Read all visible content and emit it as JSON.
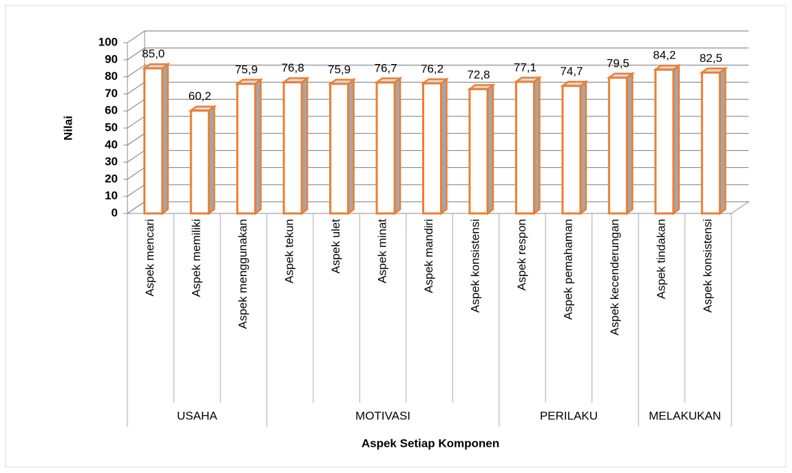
{
  "chart_data": {
    "type": "bar3d",
    "y_label": "Nilai",
    "x_label": "Aspek Setiap Komponen",
    "color": "#ed7d31",
    "ylim": [
      0,
      100
    ],
    "yticks": [
      0,
      10,
      20,
      30,
      40,
      50,
      60,
      70,
      80,
      90,
      100
    ],
    "grid": true,
    "groups": [
      {
        "name": "USAHA",
        "categories": [
          "Aspek mencari",
          "Aspek memiliki",
          "Aspek menggunakan"
        ],
        "values": [
          85.0,
          60.2,
          75.9
        ],
        "value_labels": [
          "85,0",
          "60,2",
          "75,9"
        ]
      },
      {
        "name": "MOTIVASI",
        "categories": [
          "Aspek tekun",
          "Aspek ulet",
          "Aspek minat",
          "Aspek mandiri",
          "Aspek konsistensi"
        ],
        "values": [
          76.8,
          75.9,
          76.7,
          76.2,
          72.8
        ],
        "value_labels": [
          "76,8",
          "75,9",
          "76,7",
          "76,2",
          "72,8"
        ]
      },
      {
        "name": "PERILAKU",
        "categories": [
          "Aspek respon",
          "Aspek pemahaman",
          "Aspek kecenderungan"
        ],
        "values": [
          77.1,
          74.7,
          79.5
        ],
        "value_labels": [
          "77,1",
          "74,7",
          "79,5"
        ]
      },
      {
        "name": "MELAKUKAN",
        "categories": [
          "Aspek tindakan",
          "Aspek konsistensi"
        ],
        "values": [
          84.2,
          82.5
        ],
        "value_labels": [
          "84,2",
          "82,5"
        ]
      }
    ]
  }
}
